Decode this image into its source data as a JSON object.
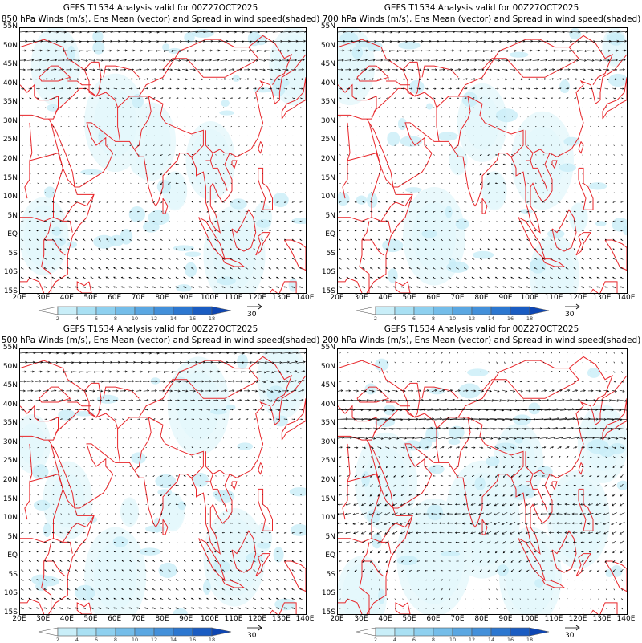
{
  "panels": [
    {
      "title1": "GEFS T1534 Analysis valid for 00Z27OCT2025",
      "title2": "850 hPa Winds (m/s), Ens Mean (vector) and Spread in wind speed(shaded)",
      "level": 850
    },
    {
      "title1": "GEFS T1534 Analysis valid for 00Z27OCT2025",
      "title2": "700 hPa Winds (m/s), Ens Mean (vector) and Spread in wind speed(shaded)",
      "level": 700
    },
    {
      "title1": "GEFS T1534 Analysis valid for 00Z27OCT2025",
      "title2": "500 hPa Winds (m/s), Ens Mean (vector) and Spread in wind speed(shaded)",
      "level": 500
    },
    {
      "title1": "GEFS T1534 Analysis valid for 00Z27OCT2025",
      "title2": "200 hPa Winds (m/s), Ens Mean (vector) and Spread in wind speed(shaded)",
      "level": 200
    }
  ],
  "lat_labels": [
    "55N",
    "50N",
    "45N",
    "40N",
    "35N",
    "30N",
    "25N",
    "20N",
    "15N",
    "10N",
    "5N",
    "EQ",
    "5S",
    "10S",
    "15S"
  ],
  "lon_labels": [
    "20E",
    "30E",
    "40E",
    "50E",
    "60E",
    "70E",
    "80E",
    "90E",
    "100E",
    "110E",
    "120E",
    "130E",
    "140E"
  ],
  "colorbar": {
    "labels": [
      "2",
      "4",
      "6",
      "8",
      "10",
      "12",
      "14",
      "16",
      "18"
    ],
    "colors": [
      "#e8f8fc",
      "#c9eef8",
      "#a9e0f3",
      "#8ed0ef",
      "#74bde9",
      "#5aa7e2",
      "#4390da",
      "#2c77d0",
      "#1a5cc2",
      "#0e46b3"
    ]
  },
  "reference_vector": "30",
  "colors": {
    "coastline": "#e8262a",
    "vector": "#000000"
  }
}
